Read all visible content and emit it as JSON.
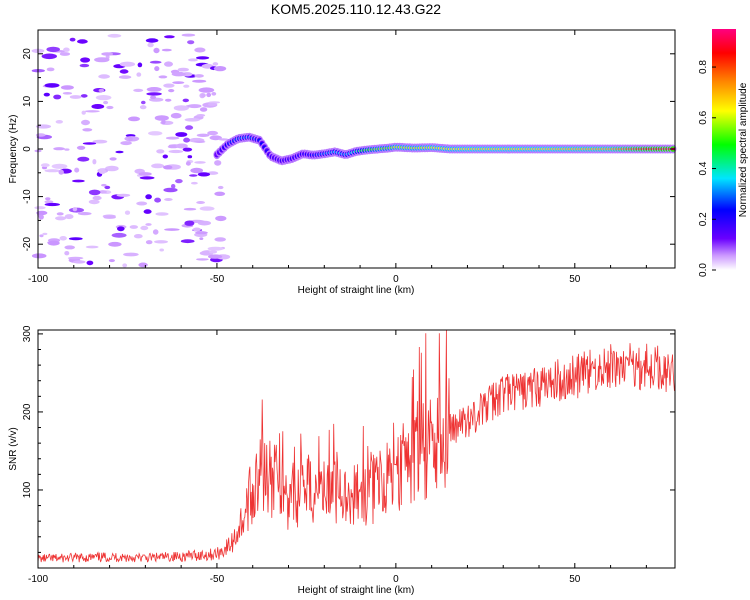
{
  "title": "KOM5.2025.110.12.43.G22",
  "chart_data": [
    {
      "type": "heatmap",
      "xlabel": "Height of straight line (km)",
      "ylabel": "Frequency (Hz)",
      "xlim": [
        -100,
        78
      ],
      "ylim": [
        -25,
        25
      ],
      "xticks": [
        "-100",
        "-50",
        "0",
        "50"
      ],
      "yticks": [
        "-20",
        "-10",
        "0",
        "10",
        "20"
      ],
      "colorbar": {
        "label": "Normalized spectral amplitude",
        "range": [
          0,
          0.95
        ],
        "ticks": [
          "0.0",
          "0.2",
          "0.4",
          "0.6",
          "0.8"
        ],
        "colors": [
          "#ffffff",
          "#cc99ff",
          "#6a00ff",
          "#0000ff",
          "#00e5ff",
          "#00ff00",
          "#ffff00",
          "#ff8800",
          "#ff0000",
          "#ff0080"
        ]
      },
      "ridge": {
        "x": [
          -50,
          -47,
          -44,
          -41,
          -38,
          -35,
          -32,
          -29,
          -26,
          -23,
          -20,
          -17,
          -14,
          -11,
          -8,
          -5,
          -2,
          0,
          5,
          10,
          15,
          20,
          30,
          40,
          50,
          60,
          70,
          78
        ],
        "y": [
          -1.2,
          1.0,
          2.2,
          2.5,
          1.8,
          -1.5,
          -2.5,
          -2.0,
          -1.0,
          -1.3,
          -1.0,
          -0.6,
          -1.2,
          -0.5,
          -0.2,
          0.0,
          0.2,
          0.4,
          0.2,
          0.3,
          0.0,
          0.0,
          0.0,
          0.0,
          0.0,
          0.0,
          0.0,
          0.0
        ],
        "amplitude": [
          0.12,
          0.25,
          0.3,
          0.3,
          0.25,
          0.18,
          0.18,
          0.2,
          0.22,
          0.25,
          0.3,
          0.35,
          0.32,
          0.4,
          0.5,
          0.55,
          0.55,
          0.6,
          0.6,
          0.62,
          0.62,
          0.65,
          0.65,
          0.65,
          0.68,
          0.7,
          0.85,
          0.92
        ]
      }
    },
    {
      "type": "line",
      "xlabel": "Height of straight line (km)",
      "ylabel": "SNR (v/v)",
      "xlim": [
        -100,
        78
      ],
      "ylim": [
        0,
        305
      ],
      "xticks": [
        "-100",
        "-50",
        "0",
        "50"
      ],
      "yticks": [
        "100",
        "200",
        "300"
      ],
      "color": "#ee3333",
      "x": [
        -100,
        -90,
        -80,
        -70,
        -60,
        -50,
        -46,
        -43,
        -40,
        -37,
        -34,
        -31,
        -28,
        -25,
        -22,
        -19,
        -16,
        -13,
        -10,
        -7,
        -4,
        -1,
        2,
        6,
        10,
        14,
        18,
        22,
        26,
        30,
        34,
        38,
        42,
        46,
        50,
        54,
        58,
        62,
        66,
        70,
        74,
        78
      ],
      "y": [
        12,
        13,
        14,
        13,
        15,
        18,
        30,
        60,
        100,
        110,
        115,
        85,
        90,
        105,
        100,
        95,
        105,
        90,
        95,
        100,
        110,
        120,
        130,
        150,
        160,
        175,
        185,
        195,
        210,
        225,
        225,
        230,
        235,
        240,
        245,
        250,
        255,
        258,
        260,
        258,
        255,
        255
      ]
    }
  ]
}
